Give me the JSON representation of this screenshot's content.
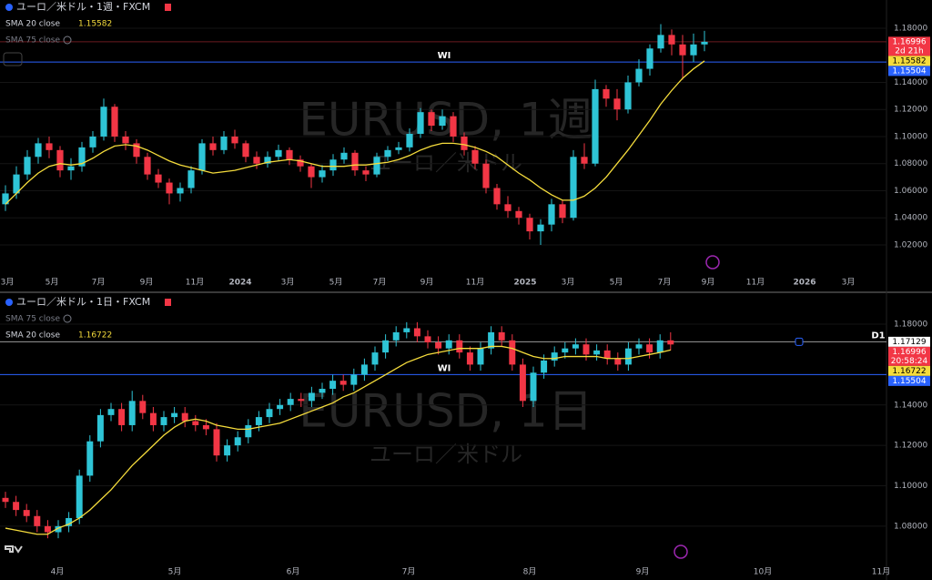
{
  "chart_data": [
    {
      "type": "candlestick",
      "title": "ユーロ／米ドル・1週・FXCM",
      "watermark": "EURUSD, 1週",
      "watermark_sub": "ユーロ／米ドル",
      "indicators": [
        {
          "name": "SMA 20 close",
          "value": 1.15582
        },
        {
          "name": "SMA 75 close"
        }
      ],
      "x_labels": [
        "3月",
        "5月",
        "7月",
        "9月",
        "11月",
        "2024",
        "3月",
        "5月",
        "7月",
        "9月",
        "11月",
        "2025",
        "3月",
        "5月",
        "7月",
        "9月",
        "11月",
        "2026",
        "3月"
      ],
      "ylim": [
        1.0025,
        1.2008
      ],
      "yticks": [
        {
          "value": 1.02,
          "label": "1.02000"
        },
        {
          "value": 1.04,
          "label": "1.04000"
        },
        {
          "value": 1.06,
          "label": "1.06000"
        },
        {
          "value": 1.08,
          "label": "1.08000"
        },
        {
          "value": 1.1,
          "label": "1.10000"
        },
        {
          "value": 1.12,
          "label": "1.12000"
        },
        {
          "value": 1.14,
          "label": "1.14000"
        },
        {
          "value": 1.18,
          "label": "1.18000"
        }
      ],
      "up_color": "#2ec4d6",
      "down_color": "#f23645",
      "candles": {
        "open": [
          1.05,
          1.058,
          1.072,
          1.085,
          1.095,
          1.09,
          1.075,
          1.078,
          1.092,
          1.1,
          1.122,
          1.1,
          1.095,
          1.085,
          1.072,
          1.066,
          1.058,
          1.062,
          1.075,
          1.095,
          1.09,
          1.1,
          1.095,
          1.085,
          1.08,
          1.085,
          1.09,
          1.083,
          1.078,
          1.07,
          1.075,
          1.083,
          1.088,
          1.075,
          1.072,
          1.085,
          1.09,
          1.092,
          1.102,
          1.118,
          1.108,
          1.115,
          1.1,
          1.09,
          1.08,
          1.062,
          1.05,
          1.045,
          1.04,
          1.03,
          1.035,
          1.05,
          1.04,
          1.085,
          1.08,
          1.135,
          1.128,
          1.12,
          1.14,
          1.15,
          1.165,
          1.175,
          1.168,
          1.16,
          1.168
        ],
        "high": [
          1.064,
          1.078,
          1.09,
          1.099,
          1.1,
          1.093,
          1.084,
          1.096,
          1.104,
          1.128,
          1.124,
          1.104,
          1.098,
          1.088,
          1.076,
          1.069,
          1.066,
          1.078,
          1.098,
          1.1,
          1.104,
          1.105,
          1.097,
          1.089,
          1.089,
          1.094,
          1.092,
          1.086,
          1.08,
          1.079,
          1.087,
          1.092,
          1.09,
          1.078,
          1.088,
          1.093,
          1.096,
          1.106,
          1.121,
          1.12,
          1.12,
          1.118,
          1.103,
          1.093,
          1.083,
          1.065,
          1.056,
          1.048,
          1.043,
          1.039,
          1.054,
          1.053,
          1.09,
          1.095,
          1.142,
          1.138,
          1.135,
          1.145,
          1.157,
          1.168,
          1.183,
          1.179,
          1.175,
          1.176,
          1.178
        ],
        "low": [
          1.045,
          1.054,
          1.068,
          1.08,
          1.084,
          1.07,
          1.068,
          1.074,
          1.088,
          1.097,
          1.096,
          1.09,
          1.08,
          1.068,
          1.062,
          1.05,
          1.052,
          1.058,
          1.072,
          1.086,
          1.087,
          1.091,
          1.081,
          1.076,
          1.077,
          1.082,
          1.079,
          1.074,
          1.062,
          1.066,
          1.071,
          1.08,
          1.071,
          1.067,
          1.07,
          1.082,
          1.087,
          1.089,
          1.099,
          1.104,
          1.105,
          1.096,
          1.086,
          1.076,
          1.058,
          1.046,
          1.04,
          1.035,
          1.024,
          1.02,
          1.03,
          1.036,
          1.038,
          1.076,
          1.078,
          1.122,
          1.112,
          1.117,
          1.137,
          1.145,
          1.162,
          1.16,
          1.142,
          1.155,
          1.163
        ],
        "close": [
          1.058,
          1.072,
          1.085,
          1.095,
          1.09,
          1.075,
          1.078,
          1.092,
          1.1,
          1.122,
          1.1,
          1.095,
          1.085,
          1.072,
          1.066,
          1.058,
          1.062,
          1.075,
          1.095,
          1.09,
          1.1,
          1.095,
          1.085,
          1.08,
          1.085,
          1.09,
          1.083,
          1.078,
          1.07,
          1.075,
          1.083,
          1.088,
          1.075,
          1.072,
          1.085,
          1.09,
          1.092,
          1.102,
          1.118,
          1.108,
          1.115,
          1.1,
          1.09,
          1.08,
          1.062,
          1.05,
          1.045,
          1.04,
          1.03,
          1.035,
          1.05,
          1.04,
          1.085,
          1.08,
          1.135,
          1.128,
          1.12,
          1.14,
          1.15,
          1.165,
          1.175,
          1.168,
          1.16,
          1.168,
          1.16996
        ]
      },
      "sma": {
        "color": "#f5dc3c",
        "values": [
          1.05,
          1.058,
          1.066,
          1.073,
          1.078,
          1.08,
          1.079,
          1.08,
          1.084,
          1.089,
          1.093,
          1.094,
          1.093,
          1.09,
          1.086,
          1.082,
          1.079,
          1.077,
          1.075,
          1.073,
          1.074,
          1.075,
          1.077,
          1.079,
          1.081,
          1.082,
          1.083,
          1.082,
          1.08,
          1.078,
          1.078,
          1.078,
          1.079,
          1.079,
          1.08,
          1.081,
          1.083,
          1.086,
          1.09,
          1.093,
          1.095,
          1.095,
          1.094,
          1.092,
          1.089,
          1.085,
          1.079,
          1.073,
          1.068,
          1.062,
          1.057,
          1.053,
          1.053,
          1.056,
          1.062,
          1.07,
          1.08,
          1.09,
          1.101,
          1.112,
          1.124,
          1.134,
          1.143,
          1.15,
          1.15582
        ]
      },
      "price_labels": [
        {
          "value": 1.16996,
          "sub": "2d 21h",
          "color": "#f23645"
        },
        {
          "value": 1.15582,
          "color": "#f5dc3c"
        },
        {
          "value": 1.15504,
          "color": "#2962ff"
        }
      ],
      "lines": [
        {
          "value": 1.16996,
          "color": "#6b1a1f"
        },
        {
          "label": "WI",
          "value": 1.15504,
          "color": "#2962ff"
        }
      ]
    },
    {
      "type": "candlestick",
      "title": "ユーロ／米ドル・1日・FXCM",
      "watermark": "EURUSD, 1日",
      "watermark_sub": "ユーロ／米ドル",
      "indicators": [
        {
          "name": "SMA 75 close"
        },
        {
          "name": "SMA 20 close",
          "value": 1.16722
        }
      ],
      "x_labels": [
        "4月",
        "5月",
        "6月",
        "7月",
        "8月",
        "9月",
        "10月",
        "11月"
      ],
      "ylim": [
        1.061,
        1.194
      ],
      "yticks": [
        {
          "value": 1.08,
          "label": "1.08000"
        },
        {
          "value": 1.1,
          "label": "1.10000"
        },
        {
          "value": 1.12,
          "label": "1.12000"
        },
        {
          "value": 1.14,
          "label": "1.14000"
        },
        {
          "value": 1.18,
          "label": "1.18000"
        }
      ],
      "up_color": "#2ec4d6",
      "down_color": "#f23645",
      "candles": {
        "open": [
          1.094,
          1.092,
          1.088,
          1.085,
          1.08,
          1.077,
          1.08,
          1.084,
          1.105,
          1.122,
          1.135,
          1.138,
          1.13,
          1.142,
          1.136,
          1.13,
          1.134,
          1.136,
          1.132,
          1.13,
          1.128,
          1.115,
          1.12,
          1.124,
          1.13,
          1.134,
          1.138,
          1.14,
          1.143,
          1.142,
          1.146,
          1.148,
          1.152,
          1.15,
          1.155,
          1.16,
          1.166,
          1.172,
          1.176,
          1.178,
          1.174,
          1.171,
          1.168,
          1.172,
          1.166,
          1.16,
          1.168,
          1.176,
          1.172,
          1.16,
          1.142,
          1.156,
          1.162,
          1.166,
          1.168,
          1.17,
          1.165,
          1.167,
          1.163,
          1.16,
          1.168,
          1.17,
          1.166,
          1.172
        ],
        "high": [
          1.097,
          1.095,
          1.091,
          1.088,
          1.083,
          1.083,
          1.087,
          1.108,
          1.125,
          1.138,
          1.141,
          1.141,
          1.147,
          1.145,
          1.139,
          1.137,
          1.139,
          1.139,
          1.135,
          1.133,
          1.131,
          1.123,
          1.127,
          1.133,
          1.137,
          1.141,
          1.143,
          1.146,
          1.146,
          1.149,
          1.151,
          1.155,
          1.155,
          1.158,
          1.163,
          1.169,
          1.175,
          1.179,
          1.181,
          1.181,
          1.177,
          1.174,
          1.175,
          1.175,
          1.169,
          1.171,
          1.179,
          1.179,
          1.175,
          1.163,
          1.159,
          1.165,
          1.169,
          1.171,
          1.173,
          1.173,
          1.17,
          1.17,
          1.166,
          1.171,
          1.173,
          1.173,
          1.175,
          1.176
        ],
        "low": [
          1.089,
          1.085,
          1.082,
          1.077,
          1.074,
          1.074,
          1.077,
          1.081,
          1.102,
          1.119,
          1.132,
          1.127,
          1.127,
          1.133,
          1.127,
          1.127,
          1.131,
          1.129,
          1.127,
          1.125,
          1.112,
          1.112,
          1.117,
          1.121,
          1.127,
          1.131,
          1.135,
          1.137,
          1.139,
          1.139,
          1.143,
          1.145,
          1.147,
          1.147,
          1.152,
          1.157,
          1.163,
          1.169,
          1.173,
          1.171,
          1.168,
          1.165,
          1.165,
          1.163,
          1.157,
          1.157,
          1.165,
          1.169,
          1.157,
          1.139,
          1.139,
          1.153,
          1.159,
          1.163,
          1.165,
          1.162,
          1.162,
          1.16,
          1.157,
          1.157,
          1.165,
          1.163,
          1.163,
          1.167
        ],
        "close": [
          1.092,
          1.088,
          1.085,
          1.08,
          1.077,
          1.08,
          1.084,
          1.105,
          1.122,
          1.135,
          1.138,
          1.13,
          1.142,
          1.136,
          1.13,
          1.134,
          1.136,
          1.132,
          1.13,
          1.128,
          1.115,
          1.12,
          1.124,
          1.13,
          1.134,
          1.138,
          1.14,
          1.143,
          1.142,
          1.146,
          1.148,
          1.152,
          1.15,
          1.155,
          1.16,
          1.166,
          1.172,
          1.176,
          1.178,
          1.174,
          1.171,
          1.168,
          1.172,
          1.166,
          1.16,
          1.168,
          1.176,
          1.172,
          1.16,
          1.142,
          1.156,
          1.162,
          1.166,
          1.168,
          1.17,
          1.165,
          1.167,
          1.163,
          1.16,
          1.168,
          1.17,
          1.166,
          1.172,
          1.16996
        ]
      },
      "sma": {
        "color": "#f5dc3c",
        "values": [
          1.079,
          1.078,
          1.077,
          1.076,
          1.076,
          1.079,
          1.081,
          1.084,
          1.088,
          1.093,
          1.098,
          1.104,
          1.11,
          1.115,
          1.12,
          1.125,
          1.129,
          1.132,
          1.133,
          1.132,
          1.13,
          1.129,
          1.128,
          1.128,
          1.129,
          1.13,
          1.131,
          1.133,
          1.135,
          1.137,
          1.139,
          1.141,
          1.144,
          1.146,
          1.149,
          1.152,
          1.155,
          1.158,
          1.161,
          1.163,
          1.165,
          1.166,
          1.167,
          1.168,
          1.168,
          1.168,
          1.169,
          1.169,
          1.168,
          1.166,
          1.164,
          1.163,
          1.163,
          1.164,
          1.164,
          1.164,
          1.164,
          1.163,
          1.163,
          1.163,
          1.164,
          1.165,
          1.166,
          1.16722
        ]
      },
      "price_labels": [
        {
          "value": 1.17129,
          "color": "#ffffff"
        },
        {
          "value": 1.16996,
          "sub": "20:58:24",
          "color": "#f23645"
        },
        {
          "value": 1.16722,
          "color": "#f5dc3c"
        },
        {
          "value": 1.15504,
          "color": "#2962ff"
        }
      ],
      "lines": [
        {
          "label": "D1",
          "value": 1.17129,
          "color": "#9a9a9a"
        },
        {
          "label": "WI",
          "value": 1.15504,
          "color": "#2962ff"
        }
      ]
    }
  ]
}
